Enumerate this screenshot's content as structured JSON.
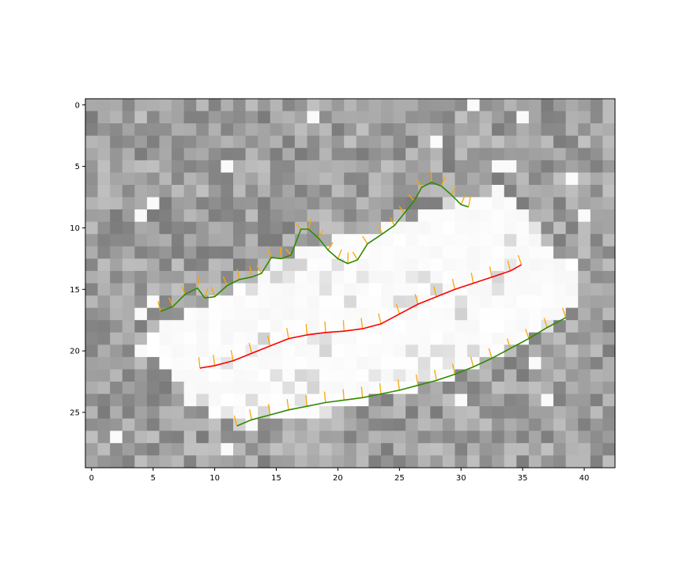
{
  "chart_data": {
    "type": "heatmap",
    "title": "",
    "xlabel": "",
    "ylabel": "",
    "grid": false,
    "colormap": "grayscale",
    "grid_size": {
      "cols": 43,
      "rows": 30
    },
    "xlim": [
      -0.5,
      42.5
    ],
    "ylim": [
      29.5,
      -0.5
    ],
    "x_ticks": [
      "0",
      "5",
      "10",
      "15",
      "20",
      "25",
      "30",
      "35",
      "40"
    ],
    "y_ticks": [
      "0",
      "5",
      "10",
      "15",
      "20",
      "25"
    ],
    "background_noise": {
      "mean_gray": 0.62,
      "spread": 0.14
    },
    "white_band_polygon": [
      [
        5.5,
        18.0
      ],
      [
        8.5,
        16.5
      ],
      [
        12.0,
        14.8
      ],
      [
        15.0,
        13.0
      ],
      [
        18.0,
        11.5
      ],
      [
        21.5,
        10.5
      ],
      [
        25.0,
        9.5
      ],
      [
        28.0,
        8.5
      ],
      [
        30.0,
        7.5
      ],
      [
        33.0,
        6.8
      ],
      [
        36.0,
        9.5
      ],
      [
        37.5,
        12.0
      ],
      [
        39.5,
        13.2
      ],
      [
        39.5,
        16.5
      ],
      [
        38.5,
        17.0
      ],
      [
        35.0,
        19.5
      ],
      [
        30.0,
        21.8
      ],
      [
        25.0,
        23.3
      ],
      [
        20.0,
        24.8
      ],
      [
        15.0,
        25.8
      ],
      [
        11.5,
        26.2
      ],
      [
        10.0,
        25.5
      ],
      [
        8.0,
        23.5
      ],
      [
        5.5,
        21.0
      ],
      [
        4.5,
        19.5
      ]
    ],
    "series": [
      {
        "color": "#2e8b00",
        "values": [
          [
            5.6,
            16.8
          ],
          [
            6.6,
            16.4
          ],
          [
            7.6,
            15.4
          ],
          [
            8.6,
            14.9
          ],
          [
            9.2,
            15.7
          ],
          [
            10.0,
            15.6
          ],
          [
            11.0,
            14.7
          ],
          [
            12.0,
            14.2
          ],
          [
            13.0,
            14.0
          ],
          [
            13.8,
            13.7
          ],
          [
            14.6,
            12.4
          ],
          [
            15.4,
            12.5
          ],
          [
            16.2,
            12.2
          ],
          [
            17.0,
            10.1
          ],
          [
            17.6,
            10.1
          ],
          [
            18.4,
            10.8
          ],
          [
            19.2,
            11.8
          ],
          [
            20.0,
            12.5
          ],
          [
            20.8,
            12.9
          ],
          [
            21.6,
            12.6
          ],
          [
            22.4,
            11.3
          ],
          [
            23.6,
            10.5
          ],
          [
            24.6,
            9.8
          ],
          [
            25.4,
            8.8
          ],
          [
            26.2,
            7.8
          ],
          [
            26.8,
            6.7
          ],
          [
            27.6,
            6.3
          ],
          [
            28.4,
            6.6
          ],
          [
            29.2,
            7.3
          ],
          [
            30.0,
            8.1
          ],
          [
            30.6,
            8.3
          ]
        ]
      },
      {
        "color": "#ff0000",
        "values": [
          [
            8.8,
            21.4
          ],
          [
            10.0,
            21.2
          ],
          [
            11.5,
            20.8
          ],
          [
            13.0,
            20.2
          ],
          [
            14.5,
            19.6
          ],
          [
            16.0,
            19.0
          ],
          [
            17.5,
            18.7
          ],
          [
            19.0,
            18.5
          ],
          [
            20.5,
            18.4
          ],
          [
            22.0,
            18.2
          ],
          [
            23.5,
            17.8
          ],
          [
            25.0,
            17.0
          ],
          [
            26.5,
            16.2
          ],
          [
            28.0,
            15.6
          ],
          [
            29.5,
            15.0
          ],
          [
            31.0,
            14.5
          ],
          [
            32.5,
            14.0
          ],
          [
            34.0,
            13.5
          ],
          [
            34.9,
            13.0
          ]
        ]
      },
      {
        "color": "#2e8b00",
        "values": [
          [
            11.8,
            26.1
          ],
          [
            13.0,
            25.6
          ],
          [
            14.5,
            25.2
          ],
          [
            16.0,
            24.8
          ],
          [
            17.5,
            24.5
          ],
          [
            19.0,
            24.2
          ],
          [
            20.5,
            24.0
          ],
          [
            22.0,
            23.8
          ],
          [
            23.5,
            23.5
          ],
          [
            25.0,
            23.2
          ],
          [
            26.5,
            22.8
          ],
          [
            28.0,
            22.4
          ],
          [
            29.5,
            21.9
          ],
          [
            31.0,
            21.3
          ],
          [
            32.5,
            20.6
          ],
          [
            34.0,
            19.8
          ],
          [
            35.5,
            19.0
          ],
          [
            37.0,
            18.1
          ],
          [
            38.5,
            17.3
          ]
        ]
      }
    ],
    "normal_ticks": {
      "color": "#ffa500",
      "length": 0.9
    }
  }
}
